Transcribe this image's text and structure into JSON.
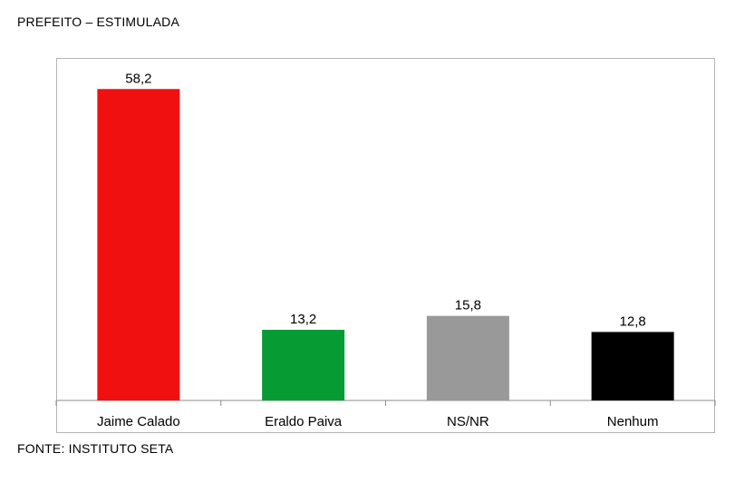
{
  "header": {
    "title": "PREFEITO – ESTIMULADA"
  },
  "footer": {
    "source": "FONTE: INSTITUTO SETA"
  },
  "chart_data": {
    "type": "bar",
    "title": "PREFEITO – ESTIMULADA",
    "xlabel": "",
    "ylabel": "",
    "categories": [
      "Jaime Calado",
      "Eraldo Paiva",
      "NS/NR",
      "Nenhum"
    ],
    "values": [
      58.2,
      13.2,
      15.8,
      12.8
    ],
    "value_labels": [
      "58,2",
      "13,2",
      "15,8",
      "12,8"
    ],
    "colors": [
      "#f01010",
      "#079b33",
      "#999999",
      "#000000"
    ],
    "ylim": [
      0,
      64
    ],
    "grid": false,
    "legend": "none"
  }
}
